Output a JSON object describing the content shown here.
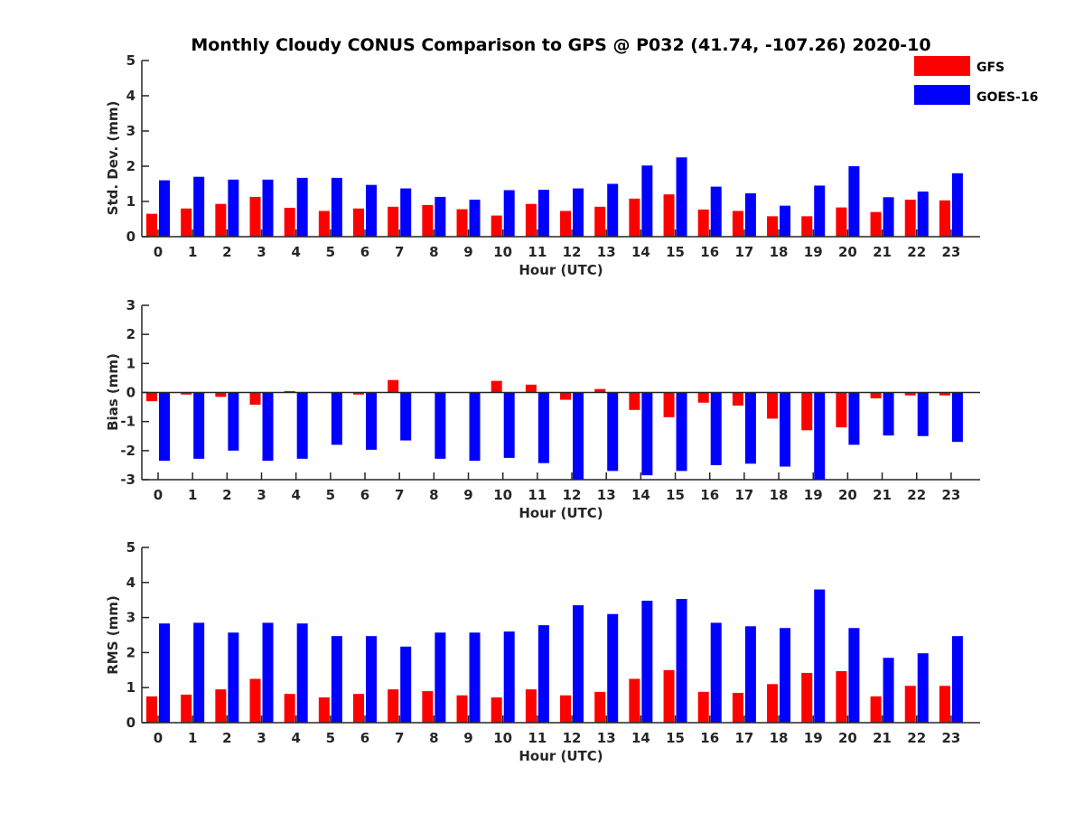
{
  "chart_data": [
    {
      "type": "bar",
      "title": "Monthly Cloudy CONUS Comparison to GPS @ P032 (41.74, -107.26) 2020-10",
      "xlabel": "Hour (UTC)",
      "ylabel": "Std. Dev. (mm)",
      "ylim": [
        0,
        5
      ],
      "yticks": [
        0,
        1,
        2,
        3,
        4,
        5
      ],
      "categories": [
        "0",
        "1",
        "2",
        "3",
        "4",
        "5",
        "6",
        "7",
        "8",
        "9",
        "10",
        "11",
        "12",
        "13",
        "14",
        "15",
        "16",
        "17",
        "18",
        "19",
        "20",
        "21",
        "22",
        "23"
      ],
      "series": [
        {
          "name": "GFS",
          "color": "#ff0000",
          "values": [
            0.65,
            0.8,
            0.93,
            1.13,
            0.82,
            0.73,
            0.8,
            0.85,
            0.9,
            0.78,
            0.6,
            0.93,
            0.73,
            0.85,
            1.08,
            1.2,
            0.77,
            0.73,
            0.58,
            0.58,
            0.83,
            0.7,
            1.05,
            1.03
          ]
        },
        {
          "name": "GOES-16",
          "color": "#0000ff",
          "values": [
            1.6,
            1.7,
            1.62,
            1.62,
            1.67,
            1.67,
            1.47,
            1.37,
            1.13,
            1.05,
            1.32,
            1.33,
            1.37,
            1.5,
            2.02,
            2.25,
            1.42,
            1.23,
            0.88,
            1.45,
            2.0,
            1.12,
            1.28,
            1.8
          ]
        }
      ]
    },
    {
      "type": "bar",
      "xlabel": "Hour (UTC)",
      "ylabel": "Bias (mm)",
      "ylim": [
        -3,
        3
      ],
      "yticks": [
        -3,
        -2,
        -1,
        0,
        1,
        2,
        3
      ],
      "categories": [
        "0",
        "1",
        "2",
        "3",
        "4",
        "5",
        "6",
        "7",
        "8",
        "9",
        "10",
        "11",
        "12",
        "13",
        "14",
        "15",
        "16",
        "17",
        "18",
        "19",
        "20",
        "21",
        "22",
        "23"
      ],
      "series": [
        {
          "name": "GFS",
          "color": "#ff0000",
          "values": [
            -0.3,
            -0.07,
            -0.15,
            -0.42,
            0.05,
            0.0,
            -0.07,
            0.43,
            0.0,
            0.0,
            0.4,
            0.27,
            -0.25,
            0.12,
            -0.6,
            -0.85,
            -0.35,
            -0.45,
            -0.9,
            -1.3,
            -1.2,
            -0.2,
            -0.1,
            -0.1
          ]
        },
        {
          "name": "GOES-16",
          "color": "#0000ff",
          "values": [
            -2.35,
            -2.28,
            -2.0,
            -2.35,
            -2.28,
            -1.8,
            -1.97,
            -1.65,
            -2.28,
            -2.35,
            -2.25,
            -2.43,
            -3.0,
            -2.7,
            -2.85,
            -2.7,
            -2.5,
            -2.45,
            -2.55,
            -3.0,
            -1.8,
            -1.48,
            -1.5,
            -1.7
          ]
        }
      ]
    },
    {
      "type": "bar",
      "xlabel": "Hour (UTC)",
      "ylabel": "RMS (mm)",
      "ylim": [
        0,
        5
      ],
      "yticks": [
        0,
        1,
        2,
        3,
        4,
        5
      ],
      "categories": [
        "0",
        "1",
        "2",
        "3",
        "4",
        "5",
        "6",
        "7",
        "8",
        "9",
        "10",
        "11",
        "12",
        "13",
        "14",
        "15",
        "16",
        "17",
        "18",
        "19",
        "20",
        "21",
        "22",
        "23"
      ],
      "series": [
        {
          "name": "GFS",
          "color": "#ff0000",
          "values": [
            0.75,
            0.8,
            0.95,
            1.25,
            0.82,
            0.72,
            0.82,
            0.95,
            0.9,
            0.78,
            0.72,
            0.95,
            0.78,
            0.88,
            1.25,
            1.5,
            0.88,
            0.85,
            1.1,
            1.42,
            1.47,
            0.75,
            1.05,
            1.05
          ]
        },
        {
          "name": "GOES-16",
          "color": "#0000ff",
          "values": [
            2.83,
            2.85,
            2.57,
            2.85,
            2.83,
            2.47,
            2.47,
            2.17,
            2.57,
            2.57,
            2.6,
            2.78,
            3.35,
            3.1,
            3.48,
            3.53,
            2.85,
            2.75,
            2.7,
            3.8,
            2.7,
            1.85,
            1.98,
            2.47
          ]
        }
      ]
    }
  ],
  "legend": {
    "items": [
      {
        "label": "GFS",
        "color": "#ff0000"
      },
      {
        "label": "GOES-16",
        "color": "#0000ff"
      }
    ]
  }
}
